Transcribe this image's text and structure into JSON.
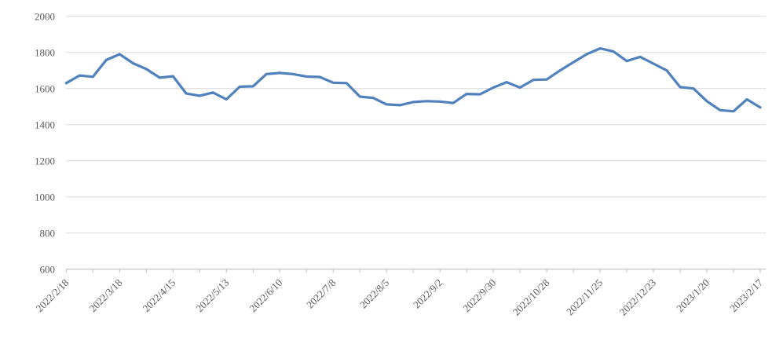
{
  "chart": {
    "background": "#ffffff",
    "line_color": "#4f81bd",
    "gridline_color": "#d9d9d9",
    "axis_color": "#bfbfbf",
    "label_color": "#595959"
  },
  "chart_data": {
    "type": "line",
    "title": "",
    "legend": "none",
    "grid": "horizontal-only",
    "ylim": [
      600,
      2000
    ],
    "y_ticks": [
      600,
      800,
      1000,
      1200,
      1400,
      1600,
      1800,
      2000
    ],
    "x_tick_labels": [
      "2022/2/18",
      "2022/3/18",
      "2022/4/15",
      "2022/5/13",
      "2022/6/10",
      "2022/7/8",
      "2022/8/5",
      "2022/9/2",
      "2022/9/30",
      "2022/10/28",
      "2022/11/25",
      "2022/12/23",
      "2023/1/20",
      "2023/2/17"
    ],
    "label_every_n_points": 4,
    "minor_tick_every_n_points": 2,
    "x_label_rotation_deg": -45,
    "points_are_weekly": true,
    "values": [
      1630,
      1672,
      1665,
      1758,
      1790,
      1740,
      1708,
      1660,
      1668,
      1572,
      1560,
      1578,
      1540,
      1610,
      1612,
      1680,
      1686,
      1680,
      1666,
      1664,
      1632,
      1630,
      1555,
      1548,
      1512,
      1508,
      1525,
      1530,
      1528,
      1520,
      1570,
      1568,
      1605,
      1635,
      1605,
      1648,
      1650,
      1700,
      1745,
      1790,
      1822,
      1805,
      1752,
      1775,
      1738,
      1700,
      1608,
      1600,
      1530,
      1480,
      1474,
      1540,
      1495
    ]
  }
}
